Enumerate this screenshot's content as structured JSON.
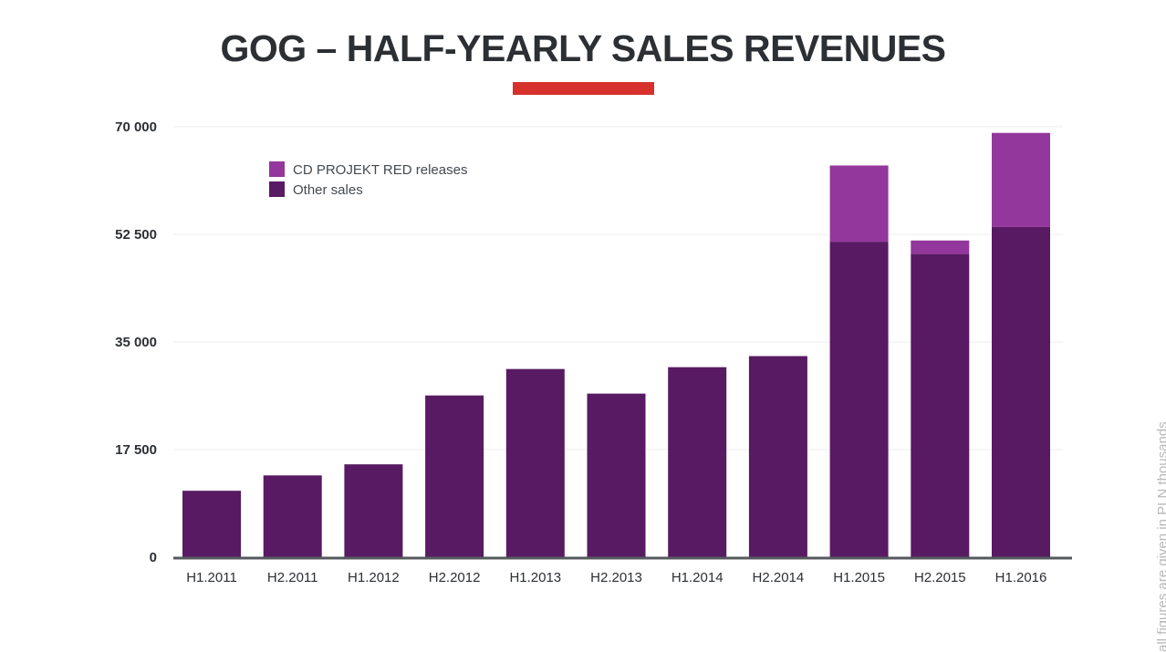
{
  "chart_data": {
    "type": "bar",
    "stacked": true,
    "title": "GOG – HALF-YEARLY SALES REVENUES",
    "note": "all figures are given in PLN thousands",
    "categories": [
      "H1.2011",
      "H2.2011",
      "H1.2012",
      "H2.2012",
      "H1.2013",
      "H2.2013",
      "H1.2014",
      "H2.2014",
      "H1.2015",
      "H2.2015",
      "H1.2016"
    ],
    "series": [
      {
        "name": "Other sales",
        "color": "#581a62",
        "values": [
          10800,
          13300,
          15100,
          26300,
          30600,
          26600,
          30900,
          32700,
          51300,
          49300,
          53700
        ]
      },
      {
        "name": "CD PROJEKT RED releases",
        "color": "#93379c",
        "values": [
          0,
          0,
          0,
          0,
          0,
          0,
          0,
          0,
          12400,
          2200,
          15300
        ]
      }
    ],
    "yticks": [
      0,
      17500,
      35000,
      52500,
      70000
    ],
    "ytick_labels": [
      "0",
      "17 500",
      "35 000",
      "52 500",
      "70 000"
    ],
    "ylim": [
      0,
      70000
    ],
    "grid": true,
    "legend_position": "top-left",
    "accent_color": "#d6312d"
  }
}
